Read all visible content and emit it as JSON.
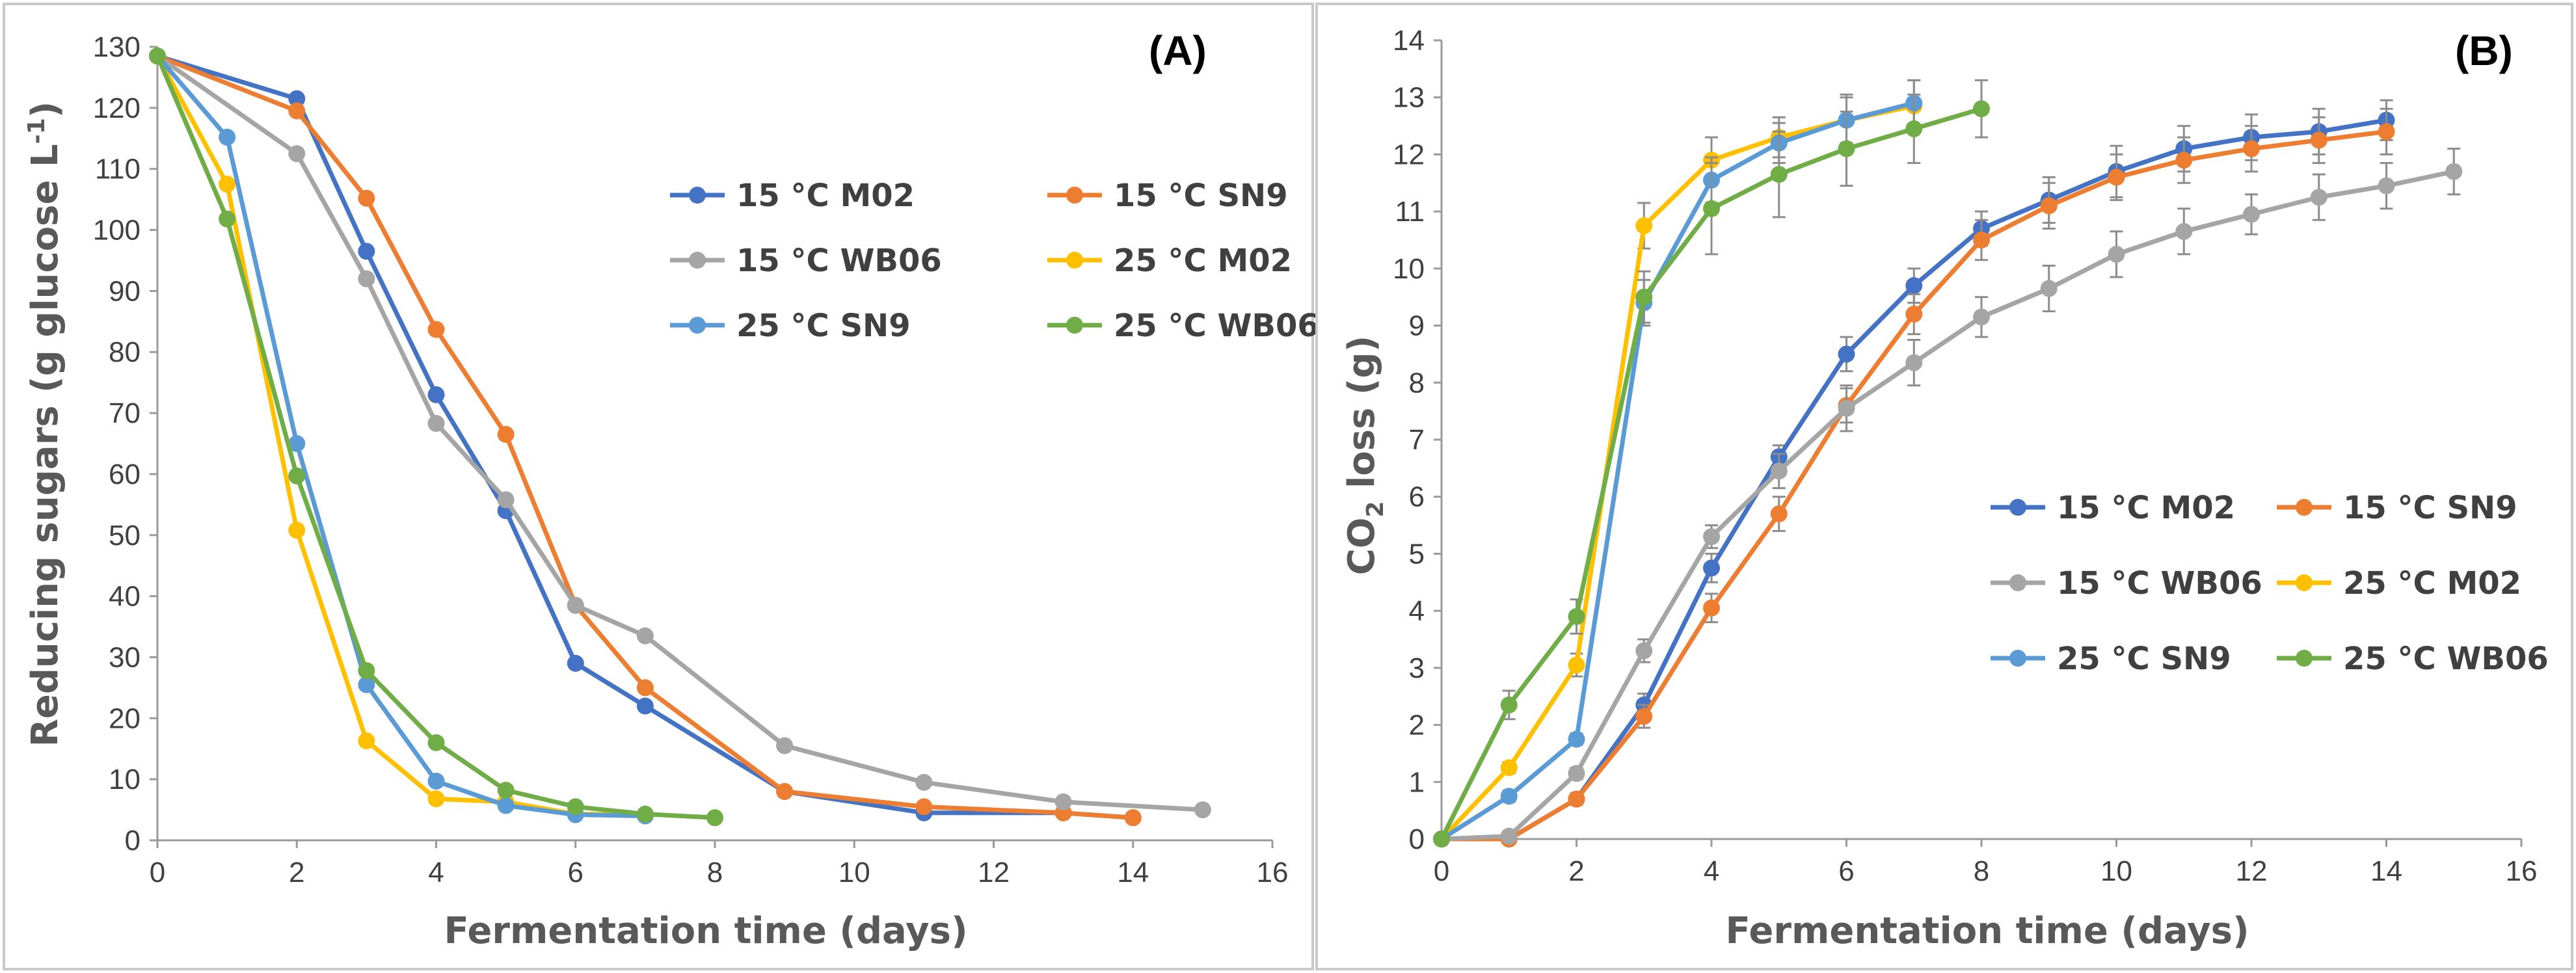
{
  "chart_data": [
    {
      "id": "A",
      "type": "line",
      "panel_label": "(A)",
      "xlabel": "Fermentation time (days)",
      "ylabel": "Reducing sugars (g glucose L-1)",
      "ylabel_main": "Reducing sugars (g glucose L",
      "ylabel_sup": "-1",
      "ylabel_end": ")",
      "xlim": [
        0,
        16
      ],
      "ylim": [
        0,
        130
      ],
      "xticks": [
        "0",
        "2",
        "4",
        "6",
        "8",
        "10",
        "12",
        "14",
        "16"
      ],
      "yticks": [
        "0",
        "10",
        "20",
        "30",
        "40",
        "50",
        "60",
        "70",
        "80",
        "90",
        "100",
        "110",
        "120",
        "130"
      ],
      "legend_position": "top-right",
      "series": [
        {
          "name": "15 °C M02",
          "color": "#4472c4",
          "x": [
            0,
            2,
            3,
            4,
            5,
            6,
            7,
            9,
            11,
            13,
            14
          ],
          "y": [
            128.5,
            121.5,
            96.5,
            73,
            54,
            29,
            22,
            8,
            4.5,
            4.5,
            3.7
          ]
        },
        {
          "name": "15 °C SN9",
          "color": "#ed7d31",
          "x": [
            0,
            2,
            3,
            4,
            5,
            6,
            7,
            9,
            11,
            13,
            14
          ],
          "y": [
            128.5,
            119.5,
            105.2,
            83.7,
            66.5,
            38.5,
            25,
            8,
            5.5,
            4.5,
            3.7
          ]
        },
        {
          "name": "15 °C WB06",
          "color": "#a5a5a5",
          "x": [
            0,
            2,
            3,
            4,
            5,
            6,
            7,
            9,
            11,
            13,
            15
          ],
          "y": [
            128.5,
            112.5,
            92,
            68.3,
            55.8,
            38.5,
            33.5,
            15.5,
            9.5,
            6.3,
            5
          ]
        },
        {
          "name": "25 °C M02",
          "color": "#ffc000",
          "x": [
            0,
            1,
            2,
            3,
            4,
            5,
            6,
            7
          ],
          "y": [
            128.5,
            107.5,
            50.8,
            16.3,
            6.8,
            6.3,
            4.3,
            4.2
          ]
        },
        {
          "name": "25 °C SN9",
          "color": "#5b9bd5",
          "x": [
            0,
            1,
            2,
            3,
            4,
            5,
            6,
            7
          ],
          "y": [
            128.5,
            115.2,
            65,
            25.5,
            9.7,
            5.7,
            4.2,
            4
          ]
        },
        {
          "name": "25 °C WB06",
          "color": "#70ad47",
          "x": [
            0,
            1,
            2,
            3,
            4,
            5,
            6,
            7,
            8
          ],
          "y": [
            128.5,
            101.8,
            59.7,
            27.8,
            16,
            8.2,
            5.5,
            4.3,
            3.7
          ]
        }
      ]
    },
    {
      "id": "B",
      "type": "line",
      "panel_label": "(B)",
      "xlabel": "Fermentation time (days)",
      "ylabel": "CO2 loss (g)",
      "ylabel_main": "CO",
      "ylabel_sub": "2",
      "ylabel_end": " loss (g)",
      "xlim": [
        0,
        16
      ],
      "ylim": [
        0,
        14
      ],
      "xticks": [
        "0",
        "2",
        "4",
        "6",
        "8",
        "10",
        "12",
        "14",
        "16"
      ],
      "yticks": [
        "0",
        "1",
        "2",
        "3",
        "4",
        "5",
        "6",
        "7",
        "8",
        "9",
        "10",
        "11",
        "12",
        "13",
        "14"
      ],
      "legend_position": "bottom-right",
      "series": [
        {
          "name": "15 °C M02",
          "color": "#4472c4",
          "x": [
            0,
            1,
            2,
            3,
            4,
            5,
            6,
            7,
            8,
            9,
            10,
            11,
            12,
            13,
            14
          ],
          "y": [
            0,
            0,
            0.7,
            2.35,
            4.75,
            6.7,
            8.5,
            9.7,
            10.7,
            11.2,
            11.7,
            12.1,
            12.3,
            12.4,
            12.6
          ],
          "err": [
            0,
            0,
            0.1,
            0.2,
            0.25,
            0.2,
            0.3,
            0.3,
            0.3,
            0.4,
            0.45,
            0.4,
            0.4,
            0.4,
            0.35
          ]
        },
        {
          "name": "15 °C SN9",
          "color": "#ed7d31",
          "x": [
            0,
            1,
            2,
            3,
            4,
            5,
            6,
            7,
            8,
            9,
            10,
            11,
            12,
            13,
            14
          ],
          "y": [
            0,
            0,
            0.7,
            2.15,
            4.05,
            5.7,
            7.6,
            9.2,
            10.5,
            11.1,
            11.6,
            11.9,
            12.1,
            12.25,
            12.4
          ],
          "err": [
            0,
            0,
            0.1,
            0.2,
            0.25,
            0.3,
            0.3,
            0.35,
            0.35,
            0.4,
            0.4,
            0.4,
            0.4,
            0.4,
            0.4
          ]
        },
        {
          "name": "15 °C WB06",
          "color": "#a5a5a5",
          "x": [
            0,
            1,
            2,
            3,
            4,
            5,
            6,
            7,
            8,
            9,
            10,
            11,
            12,
            13,
            14,
            15
          ],
          "y": [
            0,
            0.05,
            1.15,
            3.3,
            5.3,
            6.45,
            7.55,
            8.35,
            9.15,
            9.65,
            10.25,
            10.65,
            10.95,
            11.25,
            11.45,
            11.7
          ],
          "err": [
            0,
            0.05,
            0.1,
            0.2,
            0.2,
            0.3,
            0.4,
            0.4,
            0.35,
            0.4,
            0.4,
            0.4,
            0.35,
            0.4,
            0.4,
            0.4
          ]
        },
        {
          "name": "25 °C M02",
          "color": "#ffc000",
          "x": [
            0,
            1,
            2,
            3,
            4,
            5,
            6,
            7
          ],
          "y": [
            0,
            1.25,
            3.05,
            10.75,
            11.9,
            12.3,
            12.6,
            12.85
          ],
          "err": [
            0,
            0.1,
            0.2,
            0.4,
            0.4,
            0.35,
            0.45,
            0.45
          ]
        },
        {
          "name": "25 °C SN9",
          "color": "#5b9bd5",
          "x": [
            0,
            1,
            2,
            3,
            4,
            5,
            6,
            7
          ],
          "y": [
            0,
            0.75,
            1.75,
            9.4,
            11.55,
            12.2,
            12.6,
            12.9
          ],
          "err": [
            0,
            0.1,
            0.1,
            0.4,
            0.4,
            0.35,
            0.4,
            0.4
          ]
        },
        {
          "name": "25 °C WB06",
          "color": "#70ad47",
          "x": [
            0,
            1,
            2,
            3,
            4,
            5,
            6,
            7,
            8
          ],
          "y": [
            0,
            2.35,
            3.9,
            9.5,
            11.05,
            11.65,
            12.1,
            12.45,
            12.8
          ],
          "err": [
            0,
            0.25,
            0.3,
            0.45,
            0.8,
            0.75,
            0.65,
            0.6,
            0.5
          ]
        }
      ]
    }
  ]
}
